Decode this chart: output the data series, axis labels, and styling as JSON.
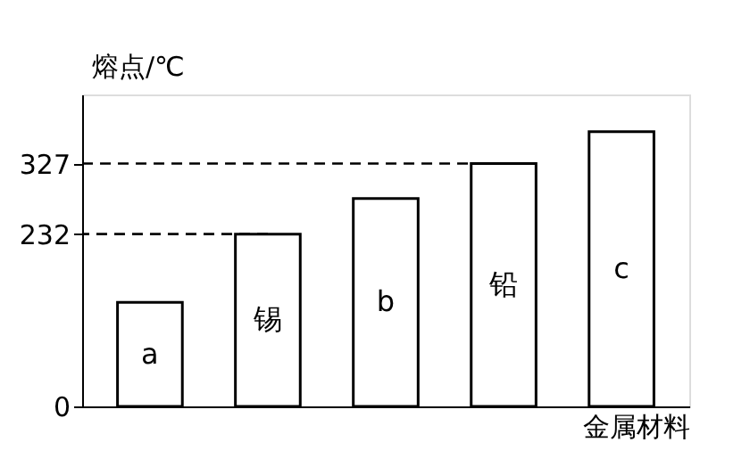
{
  "chart_data": {
    "type": "bar",
    "xlabel": "金属材料",
    "ylabel": "熔点/℃",
    "categories": [
      "a",
      "锡",
      "b",
      "铅",
      "c"
    ],
    "values": [
      140,
      232,
      280,
      327,
      370
    ],
    "color": "#ffffff",
    "ylim": [
      0,
      420
    ],
    "yticks": [
      0,
      232,
      327
    ],
    "ref_lines": [
      {
        "axis": "y",
        "value": 232,
        "line_style": "dashed"
      },
      {
        "axis": "y",
        "value": 327,
        "line_style": "dashed"
      }
    ],
    "tick_labels": "y",
    "grid": false
  }
}
